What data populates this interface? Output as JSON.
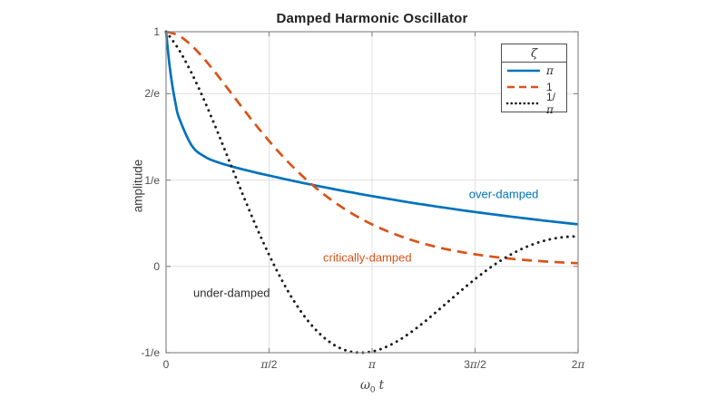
{
  "title": "Damped Harmonic Oscillator",
  "colors": {
    "series_blue": "#0072BD",
    "series_orange": "#D95319",
    "series_black": "#1a1a1a",
    "grid": "#e0e0e0",
    "frame": "#8a8a8a",
    "tick_label": "#4d4d4d",
    "background": "#ffffff"
  },
  "axes": {
    "x": {
      "label_parts": [
        "ω",
        "0",
        " t"
      ],
      "lim": [
        0,
        6.2832
      ],
      "ticks": [
        {
          "v": 0,
          "label": "0"
        },
        {
          "v": 1.5708,
          "label": "π/2"
        },
        {
          "v": 3.1416,
          "label": "π"
        },
        {
          "v": 4.7124,
          "label": "3π/2"
        },
        {
          "v": 6.2832,
          "label": "2π"
        }
      ]
    },
    "y": {
      "label": "amplitude",
      "lim": [
        -0.36788,
        1
      ],
      "ticks": [
        {
          "v": 1,
          "label": "1"
        },
        {
          "v": 0.73576,
          "label": "2/e"
        },
        {
          "v": 0.36788,
          "label": "1/e"
        },
        {
          "v": 0,
          "label": "0"
        },
        {
          "v": -0.36788,
          "label": "-1/e"
        }
      ]
    }
  },
  "legend": {
    "title": "ζ",
    "entries": [
      {
        "label": "π"
      },
      {
        "label": "1"
      },
      {
        "label": "1/π"
      }
    ]
  },
  "annotations": [
    {
      "text": "over-damped",
      "color": "#0072BD",
      "t": 5.15,
      "v": 0.309
    },
    {
      "text": "critically-damped",
      "color": "#D95319",
      "t": 3.07,
      "v": 0.039
    },
    {
      "text": "under-damped",
      "color": "#2e2e2e",
      "t": 1.0,
      "v": -0.112
    }
  ],
  "chart_data": {
    "type": "line",
    "title": "Damped Harmonic Oscillator",
    "xlabel": "ω_0 t",
    "ylabel": "amplitude",
    "xlim": [
      0,
      6.2832
    ],
    "ylim": [
      -0.36788,
      1
    ],
    "grid": true,
    "legend_position": "northeast",
    "legend_title": "ζ",
    "xtick_values": [
      0,
      1.5708,
      3.1416,
      4.7124,
      6.2832
    ],
    "xtick_labels": [
      "0",
      "π/2",
      "π",
      "3π/2",
      "2π"
    ],
    "ytick_values": [
      1,
      0.73576,
      0.36788,
      0,
      -0.36788
    ],
    "ytick_labels": [
      "1",
      "2/e",
      "1/e",
      "0",
      "-1/e"
    ],
    "series": [
      {
        "name": "π",
        "role": "over-damped",
        "formula": "exp(-ζt)·cosh(t·sqrt(ζ²−1)), ζ=π",
        "color": "#0072BD",
        "style": "solid",
        "x": [
          0,
          0.0491,
          0.0982,
          0.1473,
          0.1963,
          0.3927,
          0.589,
          0.7854,
          0.9817,
          1.1781,
          1.3744,
          1.5708,
          1.7671,
          1.9635,
          2.1598,
          2.3562,
          2.5525,
          2.7489,
          2.9452,
          3.1416,
          3.3379,
          3.5343,
          3.7306,
          3.927,
          4.1233,
          4.3197,
          4.516,
          4.7124,
          4.9087,
          5.1051,
          5.3014,
          5.4978,
          5.6941,
          5.8905,
          6.0868,
          6.2832
        ],
        "y": [
          1,
          0.8662,
          0.7662,
          0.6911,
          0.6346,
          0.5142,
          0.4678,
          0.444,
          0.4272,
          0.4129,
          0.3997,
          0.387,
          0.3748,
          0.3629,
          0.3515,
          0.3404,
          0.3297,
          0.3193,
          0.3092,
          0.2995,
          0.29,
          0.2809,
          0.272,
          0.2634,
          0.2551,
          0.2471,
          0.2393,
          0.2318,
          0.2244,
          0.2174,
          0.2105,
          0.2039,
          0.1974,
          0.1912,
          0.1852,
          0.1794
        ]
      },
      {
        "name": "1",
        "role": "critically-damped",
        "formula": "exp(-t)·(1+t)",
        "color": "#D95319",
        "style": "dashed",
        "x": [
          0,
          0.1963,
          0.3927,
          0.589,
          0.7854,
          0.9817,
          1.1781,
          1.3744,
          1.5708,
          1.7671,
          1.9635,
          2.1598,
          2.3562,
          2.5525,
          2.7489,
          2.9452,
          3.1416,
          3.3379,
          3.5343,
          3.7306,
          3.927,
          4.1233,
          4.3197,
          4.516,
          4.7124,
          4.9087,
          5.1051,
          5.3014,
          5.4978,
          5.6941,
          5.8905,
          6.0868,
          6.2832
        ],
        "y": [
          1,
          0.9831,
          0.9404,
          0.8817,
          0.8141,
          0.7425,
          0.6706,
          0.6007,
          0.5345,
          0.4727,
          0.416,
          0.3645,
          0.3181,
          0.2767,
          0.24,
          0.2075,
          0.179,
          0.1541,
          0.1324,
          0.1134,
          0.0971,
          0.083,
          0.0708,
          0.0603,
          0.0514,
          0.0437,
          0.0371,
          0.0314,
          0.0266,
          0.0226,
          0.0191,
          0.0161,
          0.0136
        ]
      },
      {
        "name": "1/π",
        "role": "under-damped",
        "formula": "exp(-t/π)·cos(t·sqrt(1−1/π²))",
        "color": "#1a1a1a",
        "style": "dotted",
        "x": [
          0,
          0.1963,
          0.3927,
          0.589,
          0.7854,
          0.9817,
          1.1781,
          1.3744,
          1.5708,
          1.7671,
          1.9635,
          2.1598,
          2.3562,
          2.5525,
          2.7489,
          2.9452,
          3.1416,
          3.3379,
          3.5343,
          3.7306,
          3.927,
          4.1233,
          4.3197,
          4.516,
          4.7124,
          4.9087,
          5.1051,
          5.3014,
          5.4978,
          5.6941,
          5.8905,
          6.0868,
          6.2832
        ],
        "y": [
          1,
          0.9232,
          0.822,
          0.7031,
          0.5727,
          0.4368,
          0.301,
          0.1699,
          0.0494,
          -0.0594,
          -0.1534,
          -0.2308,
          -0.2907,
          -0.333,
          -0.3585,
          -0.3679,
          -0.363,
          -0.3455,
          -0.3175,
          -0.2814,
          -0.2394,
          -0.1937,
          -0.1463,
          -0.0992,
          -0.0542,
          -0.0123,
          0.025,
          0.0571,
          0.0833,
          0.1034,
          0.1174,
          0.1255,
          0.1282
        ]
      }
    ]
  }
}
